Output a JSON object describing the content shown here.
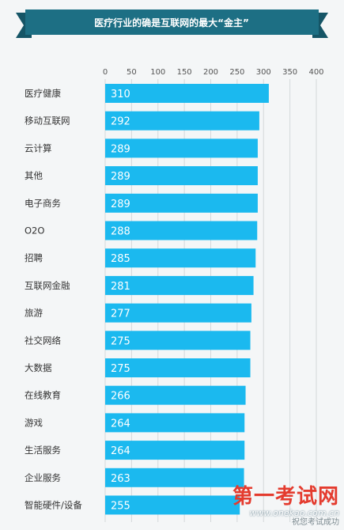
{
  "banner": {
    "title": "医疗行业的确是互联网的最大“金主”"
  },
  "chart_data": {
    "type": "bar",
    "orientation": "horizontal",
    "title": "医疗行业的确是互联网的最大“金主”",
    "xlabel": "",
    "ylabel": "",
    "xlim": [
      0,
      400
    ],
    "xticks": [
      0,
      50,
      100,
      150,
      200,
      250,
      300,
      350,
      400
    ],
    "grid": true,
    "categories": [
      "医疗健康",
      "移动互联网",
      "云计算",
      "其他",
      "电子商务",
      "O2O",
      "招聘",
      "互联网金融",
      "旅游",
      "社交网络",
      "大数据",
      "在线教育",
      "游戏",
      "生活服务",
      "企业服务",
      "智能硬件/设备"
    ],
    "values": [
      310,
      292,
      289,
      289,
      289,
      288,
      285,
      281,
      277,
      275,
      275,
      266,
      264,
      264,
      263,
      255
    ],
    "colors": {
      "bar": "#1bb9ef",
      "banner": "#1d6f84",
      "banner_edge": "#155566",
      "grid": "#d4d8da",
      "label": "#333333",
      "axis": "#555555",
      "value": "#ffffff"
    }
  },
  "watermark": {
    "main": "第一考试网",
    "url": "www.onekao.com.cn",
    "sub": "祝您考试成功"
  }
}
